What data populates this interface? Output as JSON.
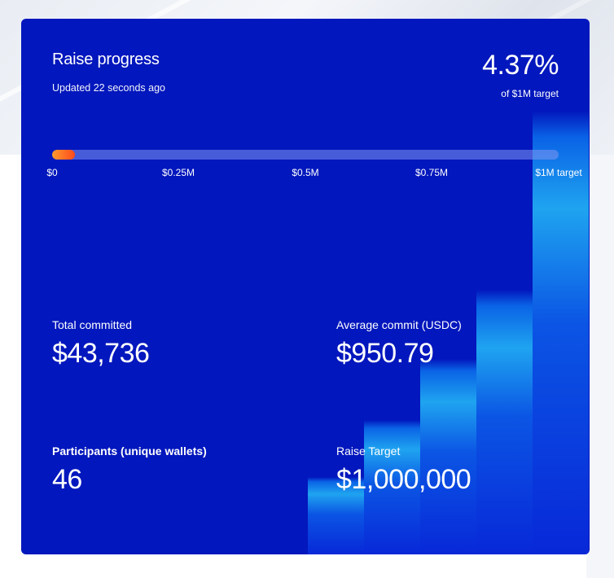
{
  "raise": {
    "title": "Raise progress",
    "updated": "Updated 22 seconds ago",
    "percent": "4.37%",
    "percent_caption": "of $1M target",
    "progress_fraction": 0.0437,
    "ticks": [
      "$0",
      "$0.25M",
      "$0.5M",
      "$0.75M",
      "$1M target"
    ]
  },
  "stats": {
    "total_committed": {
      "label": "Total committed",
      "value": "$43,736"
    },
    "average_commit": {
      "label": "Average commit (USDC)",
      "value": "$950.79"
    },
    "participants": {
      "label": "Participants (unique wallets)",
      "value": "46"
    },
    "raise_target": {
      "label": "Raise Target",
      "value": "$1,000,000"
    }
  },
  "colors": {
    "card_background": "#0217bd",
    "progress_fill_start": "#ff9a2e",
    "progress_fill_end": "#ff4a1c",
    "decor_bar_highlight": "#1fa4f0"
  }
}
